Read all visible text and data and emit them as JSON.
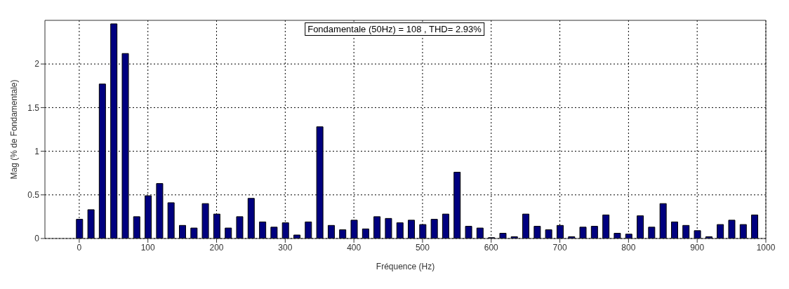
{
  "chart_data": {
    "type": "bar",
    "xlabel": "Fréquence (Hz)",
    "ylabel": "Mag (% de Fondamentale)",
    "annotations": [
      "Fondamentale (50Hz) = 108 , THD= 2.93%"
    ],
    "x": [
      0,
      16.7,
      33.3,
      50,
      66.7,
      83.3,
      100,
      116.7,
      133.3,
      150,
      166.7,
      183.3,
      200,
      216.7,
      233.3,
      250,
      266.7,
      283.3,
      300,
      316.7,
      333.3,
      350,
      366.7,
      383.3,
      400,
      416.7,
      433.3,
      450,
      466.7,
      483.3,
      500,
      516.7,
      533.3,
      550,
      566.7,
      583.3,
      600,
      616.7,
      633.3,
      650,
      666.7,
      683.3,
      700,
      716.7,
      733.3,
      750,
      766.7,
      783.3,
      800,
      816.7,
      833.3,
      850,
      866.7,
      883.3,
      900,
      916.7,
      933.3,
      950,
      966.7,
      983.3
    ],
    "values": [
      0.22,
      0.33,
      1.77,
      2.46,
      2.12,
      0.25,
      0.49,
      0.63,
      0.41,
      0.15,
      0.12,
      0.4,
      0.28,
      0.12,
      0.25,
      0.46,
      0.19,
      0.13,
      0.18,
      0.04,
      0.19,
      1.28,
      0.15,
      0.1,
      0.21,
      0.11,
      0.25,
      0.23,
      0.18,
      0.21,
      0.16,
      0.22,
      0.28,
      0.76,
      0.14,
      0.12,
      0.01,
      0.06,
      0.02,
      0.28,
      0.14,
      0.1,
      0.15,
      0.02,
      0.13,
      0.14,
      0.27,
      0.06,
      0.05,
      0.26,
      0.13,
      0.4,
      0.19,
      0.15,
      0.09,
      0.02,
      0.16,
      0.21,
      0.16,
      0.27
    ],
    "color": "#00007f",
    "xlim": [
      -50,
      1000
    ],
    "xticks": [
      0,
      100,
      200,
      300,
      400,
      500,
      600,
      700,
      800,
      900,
      1000
    ],
    "ylim": [
      0,
      2.5
    ],
    "yticks": [
      0,
      0.5,
      1,
      1.5,
      2
    ],
    "grid": true
  }
}
